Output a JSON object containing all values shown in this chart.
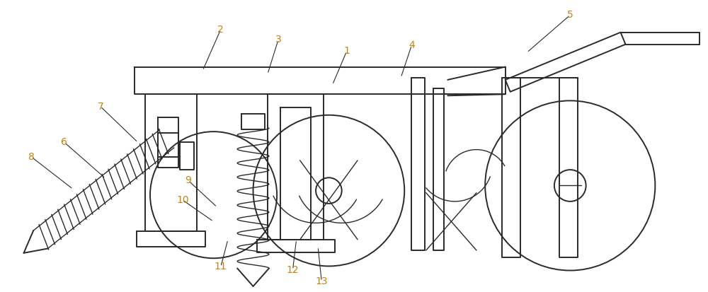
{
  "fig_width": 10.0,
  "fig_height": 4.13,
  "dpi": 100,
  "bg_color": "#ffffff",
  "line_color": "#2a2a2a",
  "label_color": "#c8820a",
  "label_fontsize": 10,
  "annotations": [
    [
      "1",
      480,
      68,
      460,
      115
    ],
    [
      "2",
      305,
      38,
      280,
      95
    ],
    [
      "3",
      385,
      52,
      370,
      100
    ],
    [
      "4",
      570,
      60,
      555,
      105
    ],
    [
      "5",
      790,
      18,
      730,
      70
    ],
    [
      "6",
      88,
      195,
      145,
      245
    ],
    [
      "7",
      138,
      145,
      190,
      195
    ],
    [
      "8",
      42,
      215,
      100,
      260
    ],
    [
      "9",
      260,
      248,
      300,
      285
    ],
    [
      "10",
      252,
      275,
      295,
      305
    ],
    [
      "11",
      305,
      368,
      315,
      330
    ],
    [
      "12",
      405,
      372,
      410,
      330
    ],
    [
      "13",
      445,
      388,
      440,
      340
    ]
  ]
}
